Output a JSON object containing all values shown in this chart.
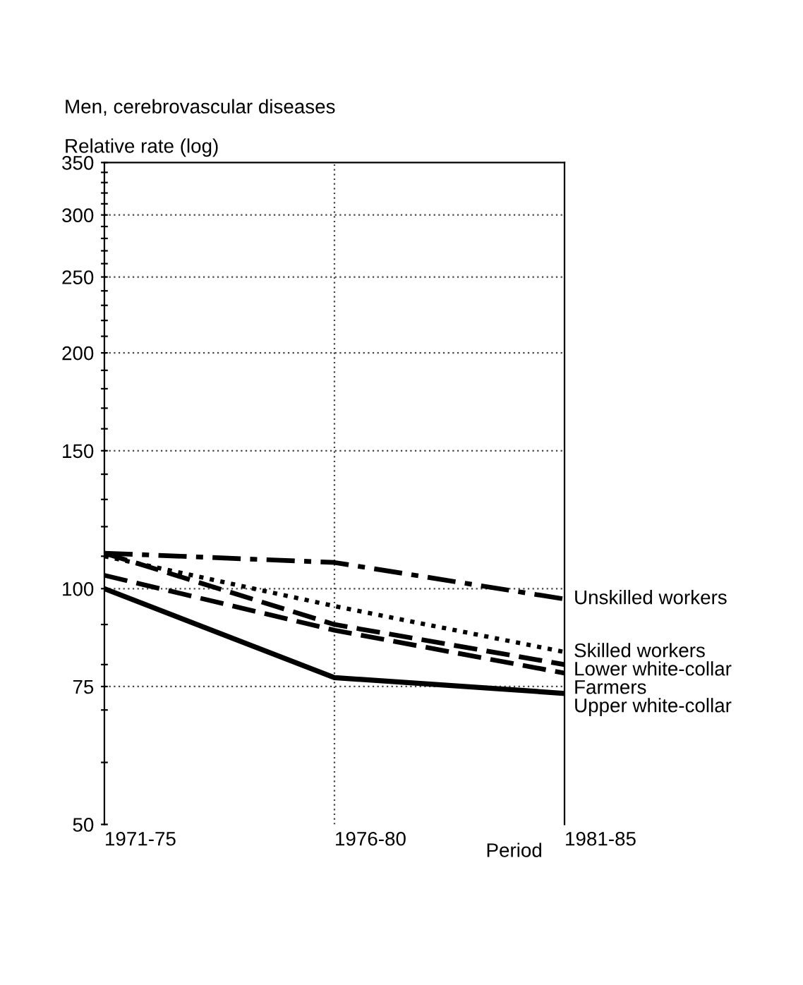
{
  "chart_data": {
    "type": "line",
    "title": "Men, cerebrovascular diseases",
    "ylabel": "Relative rate (log)",
    "xlabel": "Period",
    "categories": [
      "1971-75",
      "1976-80",
      "1981-85"
    ],
    "log": "y",
    "ylim": [
      50,
      350
    ],
    "yticks": [
      50,
      {
        "value": 60,
        "label": null
      },
      {
        "value": 70,
        "label": null
      },
      75,
      {
        "value": 80,
        "label": null
      },
      {
        "value": 90,
        "label": null
      },
      100,
      {
        "value": 110,
        "label": null
      },
      {
        "value": 120,
        "label": null
      },
      {
        "value": 130,
        "label": null
      },
      {
        "value": 140,
        "label": null
      },
      150,
      {
        "value": 160,
        "label": null
      },
      {
        "value": 170,
        "label": null
      },
      {
        "value": 180,
        "label": null
      },
      {
        "value": 190,
        "label": null
      },
      200,
      {
        "value": 210,
        "label": null
      },
      {
        "value": 220,
        "label": null
      },
      {
        "value": 230,
        "label": null
      },
      {
        "value": 240,
        "label": null
      },
      250,
      {
        "value": 260,
        "label": null
      },
      {
        "value": 270,
        "label": null
      },
      {
        "value": 280,
        "label": null
      },
      {
        "value": 290,
        "label": null
      },
      300,
      {
        "value": 310,
        "label": null
      },
      {
        "value": 320,
        "label": null
      },
      {
        "value": 330,
        "label": null
      },
      {
        "value": 340,
        "label": null
      },
      350
    ],
    "grid": true,
    "legend": false,
    "marker": "none",
    "series": [
      {
        "name": "Unskilled workers",
        "color": "#000000",
        "line_style": "dashdot",
        "values": [
          111,
          108,
          97
        ]
      },
      {
        "name": "Skilled workers",
        "color": "#000000",
        "line_style": "dotted",
        "values": [
          110,
          95,
          83
        ]
      },
      {
        "name": "Lower white-collar",
        "color": "#000000",
        "line_style": "dashed",
        "values": [
          111,
          90,
          80
        ]
      },
      {
        "name": "Farmers",
        "color": "#000000",
        "line_style": "dashed",
        "values": [
          104,
          88.5,
          78
        ]
      },
      {
        "name": "Upper white-collar",
        "color": "#000000",
        "line_style": "solid",
        "values": [
          100,
          77,
          73.5
        ]
      }
    ]
  }
}
